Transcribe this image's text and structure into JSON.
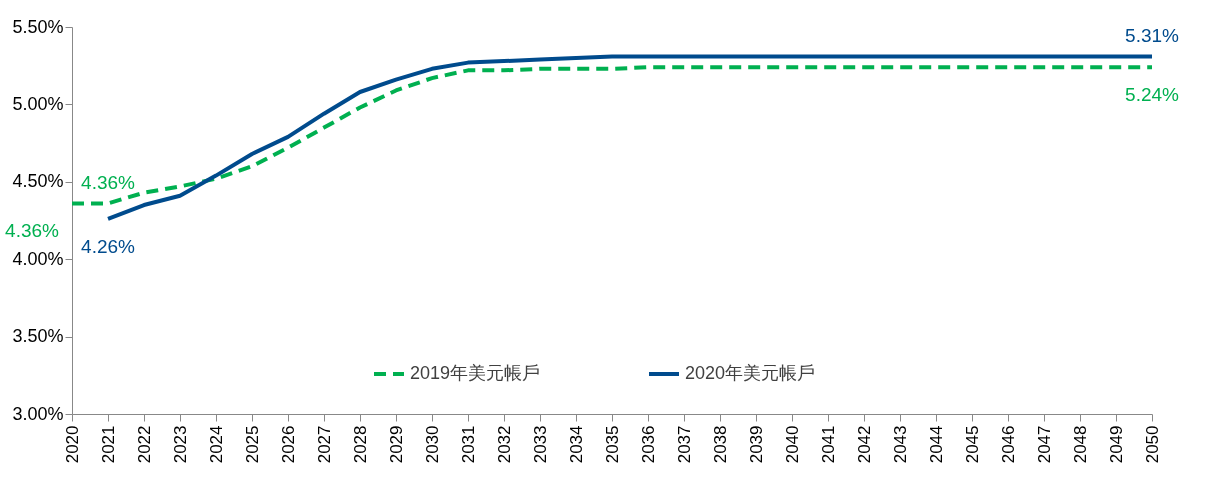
{
  "chart_data": {
    "type": "line",
    "categories": [
      "2020",
      "2021",
      "2022",
      "2023",
      "2024",
      "2025",
      "2026",
      "2027",
      "2028",
      "2029",
      "2030",
      "2031",
      "2032",
      "2033",
      "2034",
      "2035",
      "2036",
      "2037",
      "2038",
      "2039",
      "2040",
      "2041",
      "2042",
      "2043",
      "2044",
      "2045",
      "2046",
      "2047",
      "2048",
      "2049",
      "2050"
    ],
    "series": [
      {
        "name": "2019年美元帳戶",
        "color": "#00b050",
        "line_style": "dashed",
        "values": [
          4.36,
          4.36,
          4.43,
          4.47,
          4.52,
          4.6,
          4.72,
          4.85,
          4.98,
          5.09,
          5.17,
          5.22,
          5.22,
          5.23,
          5.23,
          5.23,
          5.24,
          5.24,
          5.24,
          5.24,
          5.24,
          5.24,
          5.24,
          5.24,
          5.24,
          5.24,
          5.24,
          5.24,
          5.24,
          5.24,
          5.24
        ],
        "value_labels": [
          "4.36%",
          "4.36%",
          null,
          null,
          null,
          null,
          null,
          null,
          null,
          null,
          null,
          null,
          null,
          null,
          null,
          null,
          null,
          null,
          null,
          null,
          null,
          null,
          null,
          null,
          null,
          null,
          null,
          null,
          null,
          null,
          "5.24%"
        ]
      },
      {
        "name": "2020年美元帳戶",
        "color": "#004b8d",
        "line_style": "solid",
        "values": [
          null,
          4.26,
          4.35,
          4.41,
          4.54,
          4.68,
          4.79,
          4.94,
          5.08,
          5.16,
          5.23,
          5.27,
          5.28,
          5.29,
          5.3,
          5.31,
          5.31,
          5.31,
          5.31,
          5.31,
          5.31,
          5.31,
          5.31,
          5.31,
          5.31,
          5.31,
          5.31,
          5.31,
          5.31,
          5.31,
          5.31
        ],
        "value_labels": [
          null,
          "4.26%",
          null,
          null,
          null,
          null,
          null,
          null,
          null,
          null,
          null,
          null,
          null,
          null,
          null,
          null,
          null,
          null,
          null,
          null,
          null,
          null,
          null,
          null,
          null,
          null,
          null,
          null,
          null,
          null,
          "5.31%"
        ]
      }
    ],
    "ylim": [
      3,
      5.5
    ],
    "yticks": [
      {
        "value": 3,
        "label": "3.00%"
      },
      {
        "value": 3.5,
        "label": "3.50%"
      },
      {
        "value": 4,
        "label": "4.00%"
      },
      {
        "value": 4.5,
        "label": "4.50%"
      },
      {
        "value": 5,
        "label": "5.00%"
      },
      {
        "value": 5.5,
        "label": "5.50%"
      }
    ],
    "legend": "bottom",
    "grid": false
  }
}
